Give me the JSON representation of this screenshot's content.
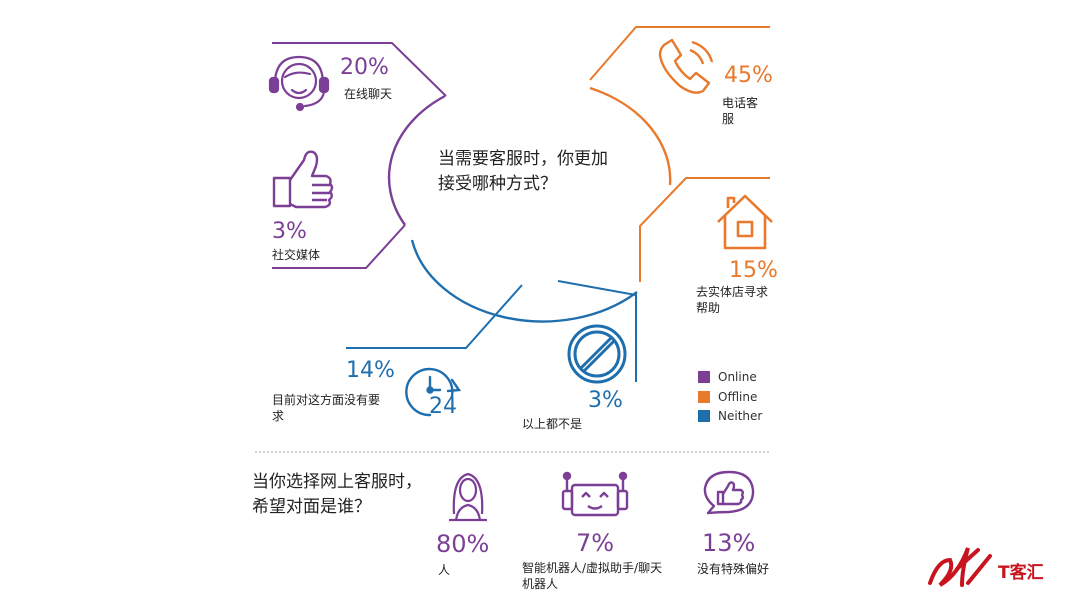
{
  "colors": {
    "online": "#7b3f96",
    "offline": "#e8792d",
    "neither": "#1f6fae",
    "brand": "#c8141e"
  },
  "chart_data": [
    {
      "type": "pie",
      "title": "当需要客服时，你更加接受哪种方式？",
      "slices": [
        {
          "label": "在线聊天",
          "value": 20,
          "group": "Online",
          "icon": "headset-icon"
        },
        {
          "label": "社交媒体",
          "value": 3,
          "group": "Online",
          "icon": "thumbs-up-icon"
        },
        {
          "label": "电话客服",
          "value": 45,
          "group": "Offline",
          "icon": "phone-icon"
        },
        {
          "label": "去实体店寻求帮助",
          "value": 15,
          "group": "Offline",
          "icon": "store-icon"
        },
        {
          "label": "目前对这方面没有要求",
          "value": 14,
          "group": "Neither",
          "icon": "clock-24-icon"
        },
        {
          "label": "以上都不是",
          "value": 3,
          "group": "Neither",
          "icon": "no-entry-icon"
        }
      ],
      "legend": {
        "position": "right",
        "entries": [
          "Online",
          "Offline",
          "Neither"
        ]
      }
    },
    {
      "type": "bar",
      "title": "当你选择网上客服时，希望对面是谁？",
      "categories": [
        "人",
        "智能机器人/虚拟助手/聊天机器人",
        "没有特殊偏好"
      ],
      "values": [
        80,
        7,
        13
      ],
      "icons": [
        "person-icon",
        "robot-icon",
        "chat-like-icon"
      ]
    }
  ],
  "display": {
    "q1": "当需要客服时，你更加接受哪种方式？",
    "q2": "当你选择网上客服时，希望对面是谁？",
    "pct": {
      "chat": "20%",
      "social": "3%",
      "phone": "45%",
      "store": "15%",
      "norequire": "14%",
      "none": "3%",
      "human": "80%",
      "robot": "7%",
      "nopref": "13%"
    },
    "labels": {
      "chat": "在线聊天",
      "social": "社交媒体",
      "phone": "电话客服",
      "store": "去实体店寻求帮助",
      "norequire": "目前对这方面没有要求",
      "none": "以上都不是",
      "human": "人",
      "robot": "智能机器人/虚拟助手/聊天机器人",
      "nopref": "没有特殊偏好"
    },
    "legend": {
      "online": "Online",
      "offline": "Offline",
      "neither": "Neither"
    },
    "logo_text": "T客汇"
  }
}
